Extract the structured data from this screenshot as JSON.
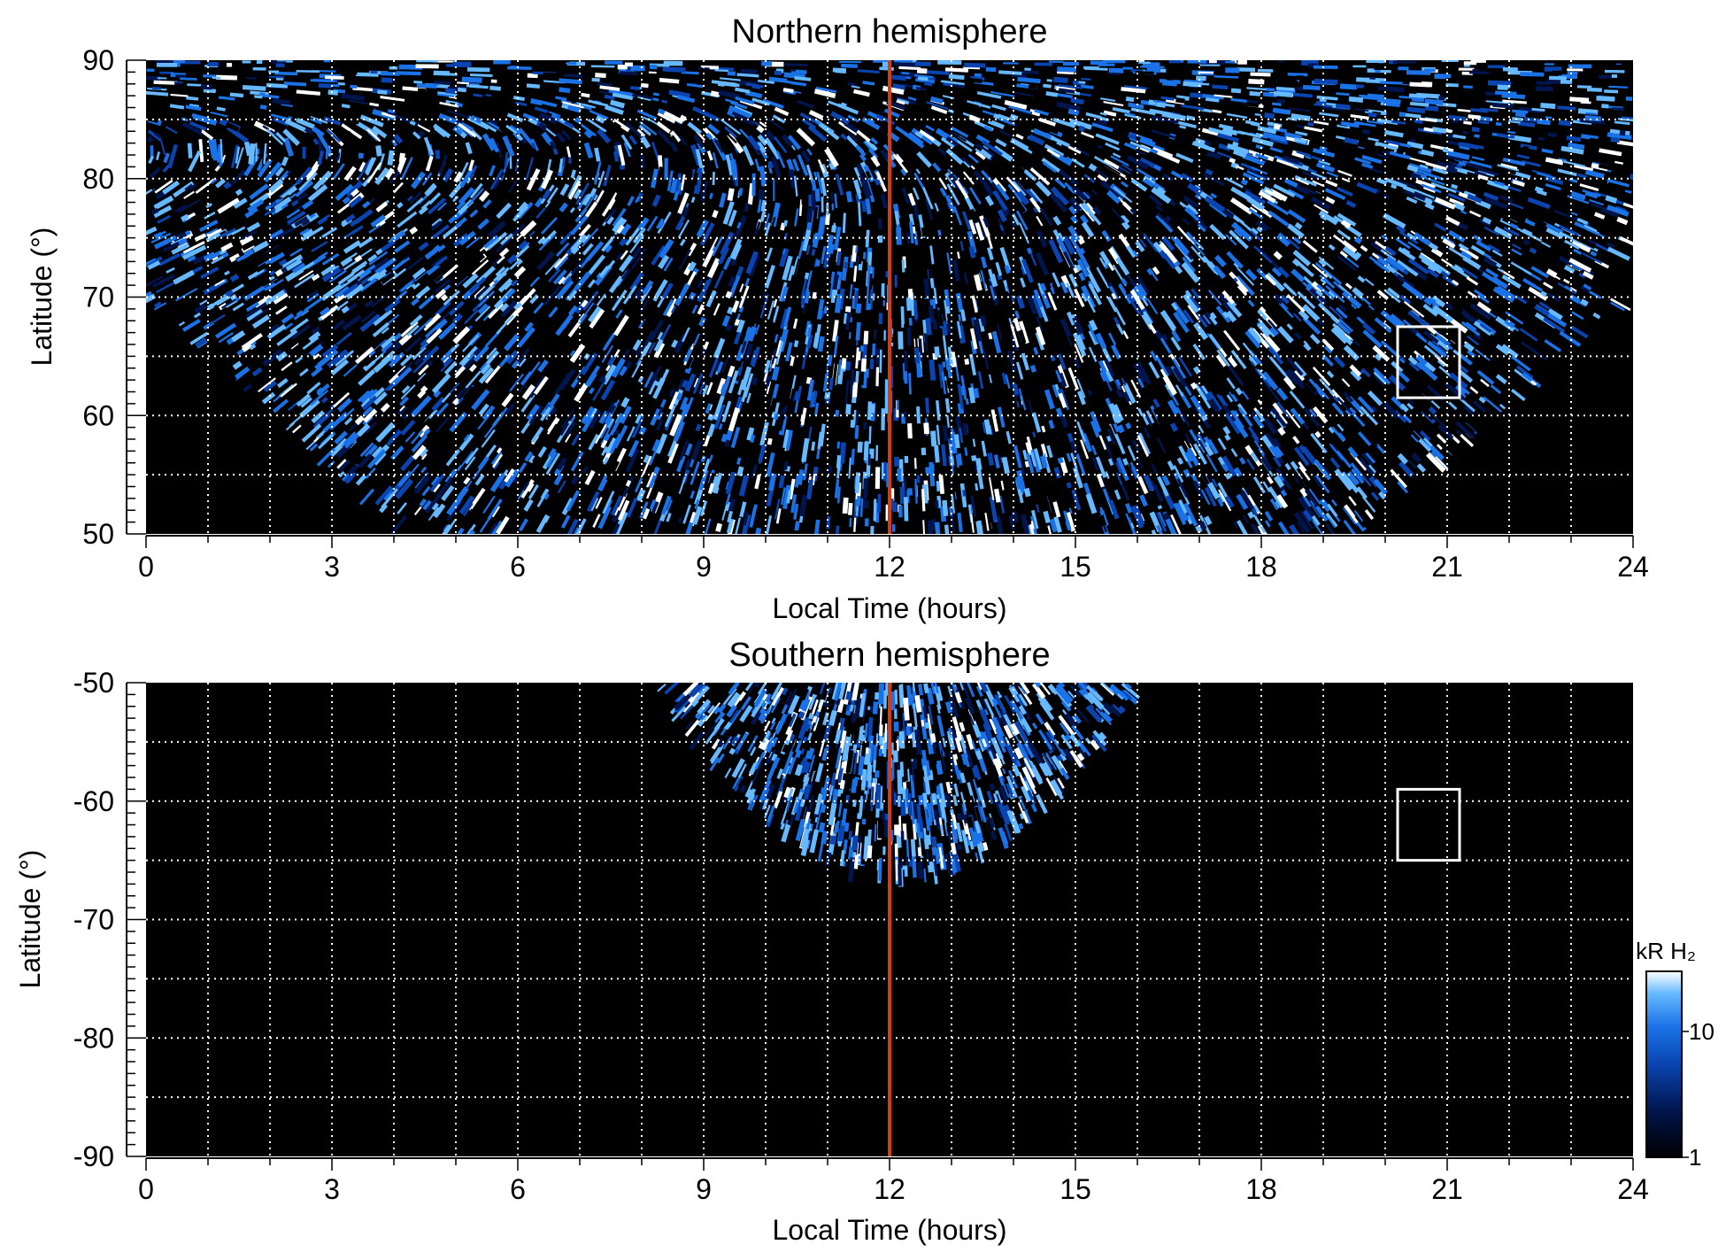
{
  "chart_data": [
    {
      "type": "heatmap",
      "title": "Northern hemisphere",
      "xlabel": "Local Time (hours)",
      "ylabel": "Latitude (°)",
      "xlim": [
        0,
        24
      ],
      "ylim": [
        50,
        90
      ],
      "x_ticks": [
        "0",
        "3",
        "6",
        "9",
        "12",
        "15",
        "18",
        "21",
        "24"
      ],
      "y_ticks": [
        "50",
        "60",
        "70",
        "80",
        "90"
      ],
      "grid": true,
      "noon_line_local_time": 12,
      "box_region": {
        "local_time": [
          20.2,
          21.2
        ],
        "latitude": [
          61.5,
          67.5
        ]
      },
      "coverage_region": "latitudes above ~70° at all local times; down to 50° between ~4 h and ~20 h"
    },
    {
      "type": "heatmap",
      "title": "Southern hemisphere",
      "xlabel": "Local Time (hours)",
      "ylabel": "Latitude (°)",
      "xlim": [
        0,
        24
      ],
      "ylim": [
        -90,
        -50
      ],
      "x_ticks": [
        "0",
        "3",
        "6",
        "9",
        "12",
        "15",
        "18",
        "21",
        "24"
      ],
      "y_ticks": [
        "-50",
        "-60",
        "-70",
        "-80",
        "-90"
      ],
      "grid": true,
      "noon_line_local_time": 12,
      "box_region": {
        "local_time": [
          20.2,
          21.2
        ],
        "latitude": [
          -65,
          -59
        ]
      },
      "coverage_region": "local time ~8.3 h to ~16 h, latitudes -50° to about -66.5°"
    }
  ],
  "colorbar": {
    "title": "kR H₂",
    "scale": "log",
    "range": [
      1,
      30
    ],
    "tick_labels": [
      "10",
      "1"
    ],
    "colors": [
      "#000000",
      "#00154d",
      "#0a44b0",
      "#1a72e6",
      "#66b8ff",
      "#ffffff"
    ]
  },
  "colors": {
    "noon_line": "#d43d14",
    "grid": "#ffffff",
    "box": "#ffffff",
    "background": "#000000"
  }
}
